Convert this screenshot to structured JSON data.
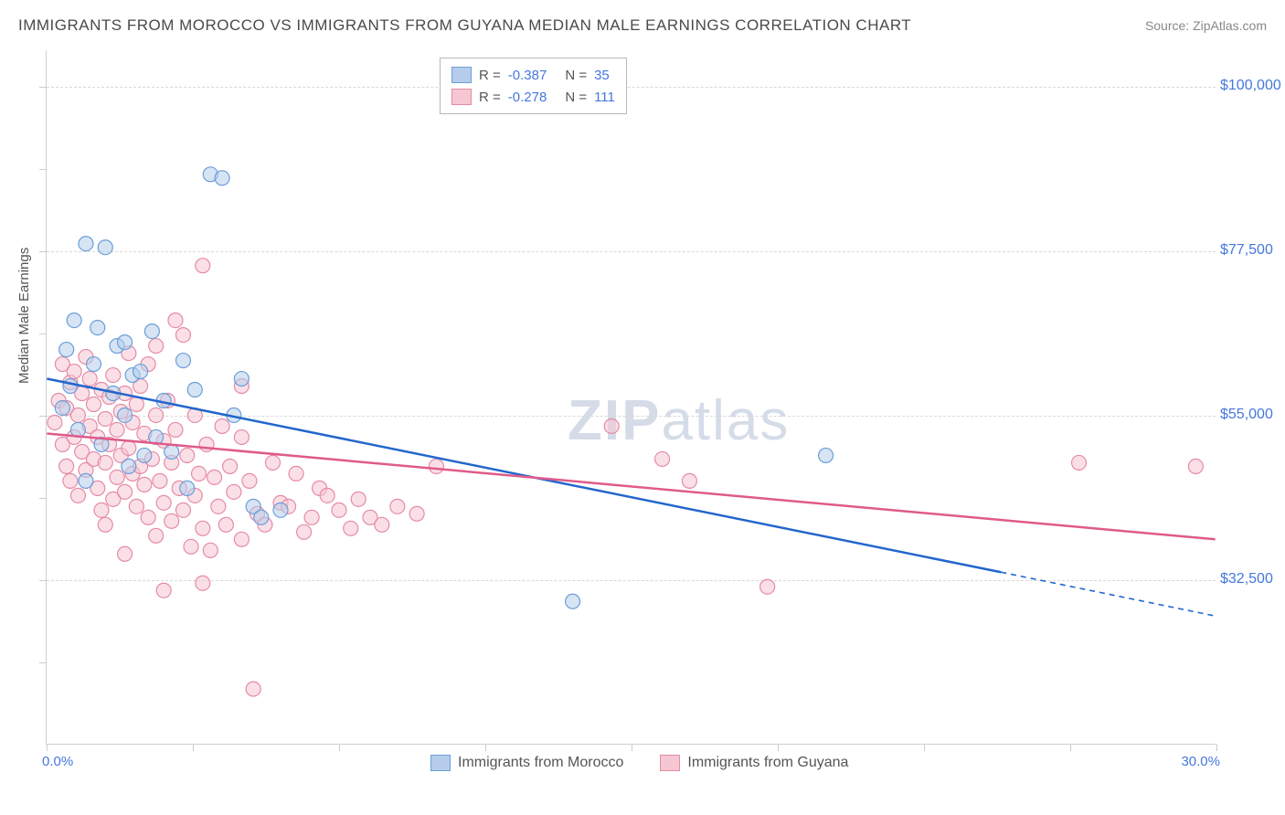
{
  "title": "IMMIGRANTS FROM MOROCCO VS IMMIGRANTS FROM GUYANA MEDIAN MALE EARNINGS CORRELATION CHART",
  "source": "Source: ZipAtlas.com",
  "axis": {
    "y_title": "Median Male Earnings",
    "x_min_label": "0.0%",
    "x_max_label": "30.0%",
    "x_min": 0.0,
    "x_max": 30.0,
    "y_min": 10000,
    "y_max": 105000,
    "y_ticks": [
      32500,
      55000,
      77500,
      100000
    ],
    "y_labels": [
      "$32,500",
      "$55,000",
      "$77,500",
      "$100,000"
    ],
    "x_tick_positions": [
      0,
      3.75,
      7.5,
      11.25,
      15,
      18.75,
      22.5,
      26.25,
      30
    ],
    "y_tick_minor": [
      21250,
      43750,
      66250,
      88750
    ]
  },
  "grid_color": "#d8d8d8",
  "background_color": "#ffffff",
  "watermark": "ZIPatlas",
  "series": [
    {
      "name": "Immigrants from Morocco",
      "color_fill": "#b5cdeb",
      "color_stroke": "#6b9ed9",
      "line_color": "#2266cc",
      "r_value": "-0.387",
      "n_value": "35",
      "marker_radius": 8,
      "regression": {
        "x1": 0,
        "y1": 60000,
        "x2": 24.5,
        "y2": 33500,
        "x2_dash": 30,
        "y2_dash": 27500
      },
      "points": [
        [
          0.4,
          56000
        ],
        [
          0.5,
          64000
        ],
        [
          0.6,
          59000
        ],
        [
          0.7,
          68000
        ],
        [
          0.8,
          53000
        ],
        [
          1.0,
          78500
        ],
        [
          1.2,
          62000
        ],
        [
          1.3,
          67000
        ],
        [
          1.4,
          51000
        ],
        [
          1.5,
          78000
        ],
        [
          1.7,
          58000
        ],
        [
          1.8,
          64500
        ],
        [
          2.0,
          55000
        ],
        [
          2.1,
          48000
        ],
        [
          2.2,
          60500
        ],
        [
          2.4,
          61000
        ],
        [
          2.5,
          49500
        ],
        [
          2.7,
          66500
        ],
        [
          2.8,
          52000
        ],
        [
          3.0,
          57000
        ],
        [
          3.2,
          50000
        ],
        [
          3.5,
          62500
        ],
        [
          3.6,
          45000
        ],
        [
          3.8,
          58500
        ],
        [
          4.2,
          88000
        ],
        [
          4.5,
          87500
        ],
        [
          4.8,
          55000
        ],
        [
          5.0,
          60000
        ],
        [
          5.3,
          42500
        ],
        [
          5.5,
          41000
        ],
        [
          6.0,
          42000
        ],
        [
          13.5,
          29500
        ],
        [
          20.0,
          49500
        ],
        [
          1.0,
          46000
        ],
        [
          2.0,
          65000
        ]
      ]
    },
    {
      "name": "Immigrants from Guyana",
      "color_fill": "#f6c7d2",
      "color_stroke": "#e68aa4",
      "line_color": "#e05a8a",
      "r_value": "-0.278",
      "n_value": "111",
      "marker_radius": 8,
      "regression": {
        "x1": 0,
        "y1": 52500,
        "x2": 30,
        "y2": 38000
      },
      "points": [
        [
          0.2,
          54000
        ],
        [
          0.3,
          57000
        ],
        [
          0.4,
          51000
        ],
        [
          0.4,
          62000
        ],
        [
          0.5,
          48000
        ],
        [
          0.5,
          56000
        ],
        [
          0.6,
          59500
        ],
        [
          0.6,
          46000
        ],
        [
          0.7,
          52000
        ],
        [
          0.7,
          61000
        ],
        [
          0.8,
          55000
        ],
        [
          0.8,
          44000
        ],
        [
          0.9,
          58000
        ],
        [
          0.9,
          50000
        ],
        [
          1.0,
          63000
        ],
        [
          1.0,
          47500
        ],
        [
          1.1,
          53500
        ],
        [
          1.1,
          60000
        ],
        [
          1.2,
          49000
        ],
        [
          1.2,
          56500
        ],
        [
          1.3,
          45000
        ],
        [
          1.3,
          52000
        ],
        [
          1.4,
          58500
        ],
        [
          1.4,
          42000
        ],
        [
          1.5,
          54500
        ],
        [
          1.5,
          48500
        ],
        [
          1.6,
          51000
        ],
        [
          1.6,
          57500
        ],
        [
          1.7,
          43500
        ],
        [
          1.7,
          60500
        ],
        [
          1.8,
          46500
        ],
        [
          1.8,
          53000
        ],
        [
          1.9,
          49500
        ],
        [
          1.9,
          55500
        ],
        [
          2.0,
          44500
        ],
        [
          2.0,
          58000
        ],
        [
          2.1,
          50500
        ],
        [
          2.1,
          63500
        ],
        [
          2.2,
          47000
        ],
        [
          2.2,
          54000
        ],
        [
          2.3,
          42500
        ],
        [
          2.3,
          56500
        ],
        [
          2.4,
          48000
        ],
        [
          2.4,
          59000
        ],
        [
          2.5,
          45500
        ],
        [
          2.5,
          52500
        ],
        [
          2.6,
          62000
        ],
        [
          2.6,
          41000
        ],
        [
          2.7,
          49000
        ],
        [
          2.8,
          55000
        ],
        [
          2.8,
          38500
        ],
        [
          2.9,
          46000
        ],
        [
          3.0,
          51500
        ],
        [
          3.0,
          43000
        ],
        [
          3.1,
          57000
        ],
        [
          3.2,
          40500
        ],
        [
          3.2,
          48500
        ],
        [
          3.3,
          53000
        ],
        [
          3.4,
          45000
        ],
        [
          3.5,
          66000
        ],
        [
          3.5,
          42000
        ],
        [
          3.6,
          49500
        ],
        [
          3.7,
          37000
        ],
        [
          3.8,
          44000
        ],
        [
          3.8,
          55000
        ],
        [
          3.9,
          47000
        ],
        [
          4.0,
          39500
        ],
        [
          4.0,
          75500
        ],
        [
          4.1,
          51000
        ],
        [
          4.2,
          36500
        ],
        [
          4.3,
          46500
        ],
        [
          4.4,
          42500
        ],
        [
          4.5,
          53500
        ],
        [
          4.6,
          40000
        ],
        [
          4.7,
          48000
        ],
        [
          4.8,
          44500
        ],
        [
          5.0,
          38000
        ],
        [
          5.0,
          52000
        ],
        [
          5.2,
          46000
        ],
        [
          5.4,
          41500
        ],
        [
          3.3,
          68000
        ],
        [
          5.6,
          40000
        ],
        [
          5.8,
          48500
        ],
        [
          6.0,
          43000
        ],
        [
          5.3,
          17500
        ],
        [
          6.2,
          42500
        ],
        [
          6.4,
          47000
        ],
        [
          6.6,
          39000
        ],
        [
          6.8,
          41000
        ],
        [
          7.0,
          45000
        ],
        [
          3.0,
          31000
        ],
        [
          7.2,
          44000
        ],
        [
          7.5,
          42000
        ],
        [
          7.8,
          39500
        ],
        [
          8.0,
          43500
        ],
        [
          4.0,
          32000
        ],
        [
          8.3,
          41000
        ],
        [
          8.6,
          40000
        ],
        [
          9.0,
          42500
        ],
        [
          5.0,
          59000
        ],
        [
          9.5,
          41500
        ],
        [
          10.0,
          48000
        ],
        [
          14.5,
          53500
        ],
        [
          15.8,
          49000
        ],
        [
          16.5,
          46000
        ],
        [
          18.5,
          31500
        ],
        [
          26.5,
          48500
        ],
        [
          29.5,
          48000
        ],
        [
          1.5,
          40000
        ],
        [
          2.0,
          36000
        ],
        [
          2.8,
          64500
        ]
      ]
    }
  ],
  "bottom_legend": [
    {
      "label": "Immigrants from Morocco",
      "fill": "#b5cdeb",
      "stroke": "#6b9ed9"
    },
    {
      "label": "Immigrants from Guyana",
      "fill": "#f6c7d2",
      "stroke": "#e68aa4"
    }
  ]
}
